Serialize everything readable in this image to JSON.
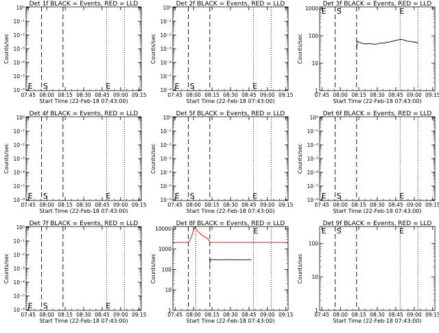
{
  "figure": {
    "xlabel": "Start Time (22-Feb-18 07:43:00)",
    "ylabel": "Counts/sec",
    "x_tick_labels": [
      "07:45",
      "08:00",
      "08:15",
      "08:30",
      "08:45",
      "09:00",
      "09:15"
    ],
    "colors": {
      "events": "#000000",
      "lld": "#d00000",
      "axes": "#000000"
    }
  },
  "chart_data": [
    {
      "type": "line",
      "title": "Det 1f BLACK = Events, RED = LLD",
      "xlim": [
        7.72,
        9.28
      ],
      "ylog": true,
      "y_tick_labels": [
        "10⁰",
        "10⁻¹",
        "10⁻²",
        "10⁻³",
        "10⁻⁴",
        "10⁻⁵",
        "10⁻⁶"
      ],
      "dashed_lines": [
        7.93,
        8.22
      ],
      "dotted_lines": [
        8.81,
        9.05
      ],
      "markers": [
        {
          "text": "E",
          "x": 7.745
        },
        {
          "text": "S",
          "x": 7.95
        },
        {
          "text": "E",
          "x": 8.8
        }
      ],
      "series": []
    },
    {
      "type": "line",
      "title": "Det 2f BLACK = Events, RED = LLD",
      "xlim": [
        7.72,
        9.28
      ],
      "ylog": true,
      "y_tick_labels": [
        "10⁰",
        "10⁻¹",
        "10⁻²",
        "10⁻³",
        "10⁻⁴",
        "10⁻⁵",
        "10⁻⁶"
      ],
      "dashed_lines": [
        7.93,
        8.22
      ],
      "dotted_lines": [
        8.81,
        9.05
      ],
      "markers": [
        {
          "text": "E",
          "x": 7.745
        },
        {
          "text": "S",
          "x": 7.95
        },
        {
          "text": "E",
          "x": 8.8
        }
      ],
      "series": []
    },
    {
      "type": "line",
      "title": "Det 3f BLACK = Events, RED = LLD",
      "xlim": [
        7.72,
        9.28
      ],
      "ylog": true,
      "y_tick_labels": [
        "1000",
        "100",
        "10",
        "1"
      ],
      "dashed_lines": [
        7.93,
        8.22
      ],
      "dotted_lines": [
        8.81,
        9.05
      ],
      "markers": [
        {
          "text": "E",
          "x": 7.745
        },
        {
          "text": "S",
          "x": 7.95
        },
        {
          "text": "E",
          "x": 8.8
        }
      ],
      "series": [
        {
          "color": "#000000",
          "x": [
            8.22,
            8.23,
            8.25,
            8.28,
            8.31,
            8.35,
            8.39,
            8.43,
            8.47,
            8.51,
            8.55,
            8.59,
            8.63,
            8.67,
            8.71,
            8.74,
            8.78,
            8.81,
            8.84,
            8.87,
            8.9,
            8.95,
            9.0,
            9.02,
            9.05
          ],
          "y": [
            30,
            63,
            58,
            55,
            52,
            50,
            52,
            50,
            49,
            51,
            54,
            53,
            58,
            60,
            63,
            66,
            70,
            74,
            72,
            68,
            64,
            62,
            58,
            60,
            52
          ]
        }
      ]
    },
    {
      "type": "line",
      "title": "Det 4f BLACK = Events, RED = LLD",
      "xlim": [
        7.72,
        9.28
      ],
      "ylog": true,
      "y_tick_labels": [
        "10⁰",
        "10⁻¹",
        "10⁻²",
        "10⁻³",
        "10⁻⁴",
        "10⁻⁵",
        "10⁻⁶"
      ],
      "dashed_lines": [
        7.93,
        8.22
      ],
      "dotted_lines": [
        8.81,
        9.05
      ],
      "markers": [
        {
          "text": "E",
          "x": 7.745
        },
        {
          "text": "S",
          "x": 7.95
        },
        {
          "text": "E",
          "x": 8.8
        }
      ],
      "series": []
    },
    {
      "type": "line",
      "title": "Det 5f BLACK = Events, RED = LLD",
      "xlim": [
        7.72,
        9.28
      ],
      "ylog": true,
      "y_tick_labels": [
        "10⁰",
        "10⁻¹",
        "10⁻²",
        "10⁻³",
        "10⁻⁴",
        "10⁻⁵",
        "10⁻⁶"
      ],
      "dashed_lines": [
        7.93,
        8.22
      ],
      "dotted_lines": [
        8.81,
        9.05
      ],
      "markers": [
        {
          "text": "E",
          "x": 7.745
        },
        {
          "text": "S",
          "x": 7.95
        },
        {
          "text": "E",
          "x": 8.8
        }
      ],
      "series": []
    },
    {
      "type": "line",
      "title": "Det 6f BLACK = Events, RED = LLD",
      "xlim": [
        7.72,
        9.28
      ],
      "ylog": true,
      "y_tick_labels": [
        "10⁰",
        "10⁻¹",
        "10⁻²",
        "10⁻³",
        "10⁻⁴",
        "10⁻⁵",
        "10⁻⁶"
      ],
      "dashed_lines": [
        7.93,
        8.22
      ],
      "dotted_lines": [
        8.81,
        9.05
      ],
      "markers": [
        {
          "text": "E",
          "x": 7.745
        },
        {
          "text": "S",
          "x": 7.95
        },
        {
          "text": "E",
          "x": 8.8
        }
      ],
      "series": []
    },
    {
      "type": "line",
      "title": "Det 7f BLACK = Events, RED = LLD",
      "xlim": [
        7.72,
        9.28
      ],
      "ylog": true,
      "y_tick_labels": [
        "10⁰",
        "10⁻¹",
        "10⁻²",
        "10⁻³",
        "10⁻⁴",
        "10⁻⁵",
        "10⁻⁶"
      ],
      "dashed_lines": [
        7.93,
        8.22
      ],
      "dotted_lines": [
        8.81,
        9.05
      ],
      "markers": [
        {
          "text": "E",
          "x": 7.745
        },
        {
          "text": "S",
          "x": 7.95
        },
        {
          "text": "E",
          "x": 8.8
        }
      ],
      "series": []
    },
    {
      "type": "line",
      "title": "Det 8f BLACK = Events, RED = LLD",
      "xlim": [
        7.72,
        9.28
      ],
      "ylog": true,
      "y_tick_labels": [
        "10000",
        "1000",
        "100",
        "10",
        "1"
      ],
      "dashed_lines": [
        7.93,
        8.22
      ],
      "dotted_lines": [
        8.03,
        8.81,
        9.05
      ],
      "markers": [
        {
          "text": "E",
          "x": 8.81
        }
      ],
      "series": [
        {
          "color": "#d00000",
          "x": [
            7.72,
            7.78,
            7.85,
            7.9,
            7.93,
            7.96,
            7.98,
            8.0,
            8.02,
            8.03,
            8.05,
            8.08,
            8.11,
            8.14,
            8.17,
            8.2,
            8.22,
            8.3,
            8.5,
            8.8,
            9.0,
            9.28
          ],
          "y": [
            2100,
            2100,
            2100,
            2100,
            2100,
            3200,
            5000,
            8500,
            12000,
            10500,
            8000,
            6200,
            5000,
            4200,
            3600,
            3000,
            2100,
            2100,
            2100,
            2100,
            2100,
            2100
          ]
        },
        {
          "color": "#000000",
          "x": [
            8.22,
            8.23,
            8.25,
            8.3,
            8.35,
            8.4,
            8.45,
            8.5,
            8.55,
            8.6,
            8.65,
            8.7,
            8.75,
            8.78
          ],
          "y": [
            190,
            310,
            300,
            302,
            298,
            300,
            305,
            300,
            298,
            302,
            300,
            298,
            305,
            296
          ]
        }
      ]
    },
    {
      "type": "line",
      "title": "Det 9f BLACK = Events, RED = LLD",
      "xlim": [
        7.72,
        9.28
      ],
      "ylog": true,
      "y_tick_labels": [
        "100",
        "10",
        "1"
      ],
      "dashed_lines": [
        7.93,
        8.22
      ],
      "dotted_lines": [
        8.81,
        9.05
      ],
      "markers": [
        {
          "text": "E",
          "x": 7.745
        },
        {
          "text": "S",
          "x": 7.95
        },
        {
          "text": "E",
          "x": 8.8
        }
      ],
      "series": []
    }
  ]
}
